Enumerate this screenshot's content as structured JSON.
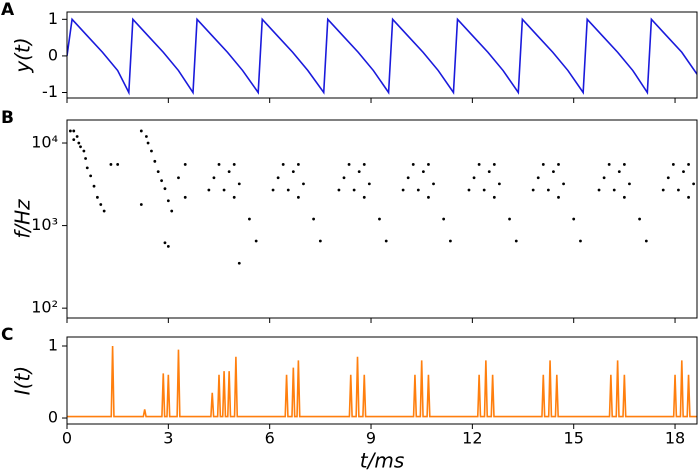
{
  "chart_data": [
    {
      "type": "line",
      "panel_label": "A",
      "ylabel": "y(t)",
      "x": [
        0,
        0.15,
        0.6,
        1.05,
        1.5,
        1.83,
        1.95,
        2.4,
        2.85,
        3.3,
        3.73,
        3.85,
        4.3,
        4.75,
        5.2,
        5.66,
        5.78,
        6.23,
        6.68,
        7.13,
        7.6,
        7.72,
        8.17,
        8.62,
        9.07,
        9.52,
        9.64,
        10.09,
        10.54,
        10.99,
        11.44,
        11.56,
        12.01,
        12.46,
        12.91,
        13.36,
        13.48,
        13.93,
        14.38,
        14.83,
        15.28,
        15.4,
        15.85,
        16.3,
        16.75,
        17.18,
        17.3,
        17.75,
        18.2,
        18.65
      ],
      "values": [
        0,
        1,
        0.55,
        0.1,
        -0.4,
        -1,
        1,
        0.55,
        0.1,
        -0.4,
        -1,
        1,
        0.55,
        0.1,
        -0.4,
        -1,
        1,
        0.55,
        0.1,
        -0.4,
        -1,
        1,
        0.55,
        0.1,
        -0.4,
        -1,
        1,
        0.55,
        0.1,
        -0.4,
        -1,
        1,
        0.55,
        0.1,
        -0.4,
        -1,
        1,
        0.55,
        0.1,
        -0.4,
        -1,
        1,
        0.55,
        0.1,
        -0.4,
        -1,
        1,
        0.55,
        0.1,
        -0.5
      ],
      "color": "#1a1adc",
      "xlim": [
        0,
        18.65
      ],
      "ylim": [
        -1.15,
        1.2
      ],
      "yticks": [
        -1,
        0,
        1
      ]
    },
    {
      "type": "scatter",
      "panel_label": "B",
      "ylabel": "f/Hz",
      "yscale": "log",
      "x": [
        0.1,
        0.2,
        0.3,
        0.35,
        0.4,
        0.5,
        0.55,
        0.6,
        0.7,
        0.8,
        0.9,
        1.0,
        1.1,
        0.2,
        1.3,
        1.5,
        2.2,
        2.35,
        2.4,
        2.5,
        2.6,
        2.7,
        2.8,
        2.9,
        3.0,
        3.1,
        2.2,
        2.9,
        3.0,
        3.5,
        3.3,
        3.5,
        4.2,
        4.35,
        4.5,
        4.65,
        4.8,
        4.95,
        4.95,
        5.1,
        5.4,
        5.6,
        6.1,
        6.25,
        6.4,
        6.55,
        6.7,
        6.85,
        6.85,
        7.0,
        7.3,
        7.5,
        8.05,
        8.2,
        8.35,
        8.5,
        8.65,
        8.8,
        8.8,
        8.95,
        9.25,
        9.45,
        9.95,
        10.1,
        10.25,
        10.4,
        10.55,
        10.7,
        10.7,
        10.85,
        11.15,
        11.35,
        11.9,
        12.05,
        12.2,
        12.35,
        12.5,
        12.65,
        12.65,
        12.8,
        13.1,
        13.3,
        13.8,
        13.95,
        14.1,
        14.25,
        14.4,
        14.55,
        14.55,
        14.7,
        15.0,
        15.2,
        15.75,
        15.9,
        16.05,
        16.2,
        16.35,
        16.5,
        16.5,
        16.65,
        16.95,
        17.15,
        17.65,
        17.8,
        17.95,
        18.1,
        18.25,
        18.4,
        18.4,
        18.55,
        5.1
      ],
      "values": [
        14000,
        14000,
        12000,
        10000,
        9000,
        8000,
        6500,
        5000,
        4000,
        3000,
        2200,
        1800,
        1500,
        11000,
        5500,
        5500,
        14000,
        12000,
        10000,
        8000,
        6000,
        4500,
        3500,
        2800,
        2000,
        1500,
        1800,
        620,
        560,
        5500,
        3800,
        2200,
        2700,
        3800,
        5500,
        2700,
        4500,
        5500,
        2200,
        3200,
        1200,
        650,
        2700,
        3800,
        5500,
        2700,
        4500,
        5500,
        2200,
        3200,
        1200,
        650,
        2700,
        3800,
        5500,
        2700,
        4500,
        5500,
        2200,
        3200,
        1200,
        650,
        2700,
        3800,
        5500,
        2700,
        4500,
        5500,
        2200,
        3200,
        1200,
        650,
        2700,
        3800,
        5500,
        2700,
        4500,
        5500,
        2200,
        3200,
        1200,
        650,
        2700,
        3800,
        5500,
        2700,
        4500,
        5500,
        2200,
        3200,
        1200,
        650,
        2700,
        3800,
        5500,
        2700,
        4500,
        5500,
        2200,
        3200,
        1200,
        650,
        2700,
        3800,
        5500,
        2700,
        4500,
        5500,
        2200,
        3200,
        350
      ],
      "color": "#000000",
      "xlim": [
        0,
        18.65
      ],
      "ylim": [
        76,
        19000
      ],
      "yticks": [
        {
          "value": 100,
          "label": "10²"
        },
        {
          "value": 1000,
          "label": "10³"
        },
        {
          "value": 10000,
          "label": "10⁴"
        }
      ]
    },
    {
      "type": "line",
      "panel_label": "C",
      "ylabel": "I(t)",
      "xlabel": "t/ms",
      "x": [
        0,
        1.31,
        1.35,
        1.39,
        2.26,
        2.3,
        2.34,
        2.81,
        2.85,
        2.89,
        2.96,
        3.0,
        3.04,
        3.26,
        3.3,
        3.34,
        4.26,
        4.3,
        4.34,
        4.46,
        4.5,
        4.54,
        4.61,
        4.65,
        4.69,
        4.76,
        4.8,
        4.84,
        4.96,
        5.0,
        5.04,
        6.46,
        6.5,
        6.54,
        6.66,
        6.7,
        6.74,
        6.81,
        6.85,
        6.89,
        8.36,
        8.4,
        8.44,
        8.56,
        8.6,
        8.64,
        8.76,
        8.8,
        8.84,
        10.26,
        10.3,
        10.34,
        10.46,
        10.5,
        10.54,
        10.66,
        10.7,
        10.74,
        12.16,
        12.2,
        12.24,
        12.36,
        12.4,
        12.44,
        12.56,
        12.6,
        12.64,
        14.06,
        14.1,
        14.14,
        14.26,
        14.3,
        14.34,
        14.46,
        14.5,
        14.54,
        16.06,
        16.1,
        16.14,
        16.26,
        16.3,
        16.34,
        16.46,
        16.5,
        16.54,
        17.96,
        18.0,
        18.04,
        18.16,
        18.2,
        18.24,
        18.36,
        18.4,
        18.44,
        18.65
      ],
      "values": [
        0.02,
        0.02,
        1.0,
        0.02,
        0.02,
        0.12,
        0.02,
        0.02,
        0.62,
        0.02,
        0.02,
        0.6,
        0.02,
        0.02,
        0.95,
        0.02,
        0.02,
        0.35,
        0.02,
        0.02,
        0.6,
        0.02,
        0.02,
        0.65,
        0.02,
        0.02,
        0.65,
        0.02,
        0.02,
        0.85,
        0.02,
        0.02,
        0.6,
        0.02,
        0.02,
        0.7,
        0.02,
        0.02,
        0.8,
        0.02,
        0.02,
        0.6,
        0.02,
        0.02,
        0.85,
        0.02,
        0.02,
        0.6,
        0.02,
        0.02,
        0.6,
        0.02,
        0.02,
        0.8,
        0.02,
        0.02,
        0.6,
        0.02,
        0.02,
        0.6,
        0.02,
        0.02,
        0.8,
        0.02,
        0.02,
        0.6,
        0.02,
        0.02,
        0.6,
        0.02,
        0.02,
        0.8,
        0.02,
        0.02,
        0.6,
        0.02,
        0.02,
        0.6,
        0.02,
        0.02,
        0.8,
        0.02,
        0.02,
        0.6,
        0.02,
        0.02,
        0.6,
        0.02,
        0.02,
        0.8,
        0.02,
        0.02,
        0.6,
        0.02,
        0.02
      ],
      "color": "#ff7f0e",
      "xlim": [
        0,
        18.65
      ],
      "ylim": [
        -0.083,
        1.125
      ],
      "yticks": [
        0,
        1
      ],
      "xticks": [
        0,
        3,
        6,
        9,
        12,
        15,
        18
      ]
    }
  ]
}
